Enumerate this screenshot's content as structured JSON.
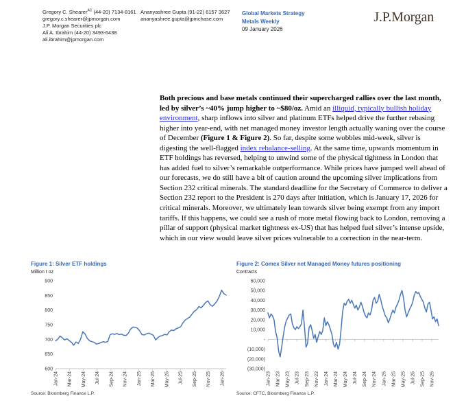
{
  "header": {
    "authors": [
      {
        "name": "Gregory C. Shearer",
        "sup": "AC",
        "phone": "(44-20) 7134-8161",
        "email": "gregory.c.shearer@jpmorgan.com",
        "firm": "J.P. Morgan Securities plc"
      },
      {
        "name": "Ali A. Ibrahim",
        "phone": "(44-20) 3493-6438",
        "email": "ali.ibrahim@jpmorgan.com"
      },
      {
        "name": "Ananyashree Gupta",
        "phone": "(91-22) 6157 3627",
        "email": "ananyashree.gupta@jpmchase.com"
      }
    ],
    "publication": {
      "line1": "Global Markets Strategy",
      "line2": "Metals Weekly",
      "date": "09 January 2026"
    },
    "logo": "J.P.Morgan",
    "accent_blue": "#3767b5",
    "logo_color": "#43362a"
  },
  "body": {
    "runs": [
      {
        "t": "Both precious and base metals continued their supercharged rallies over the last month, led by silver’s ~40% jump higher to ~$80/oz.",
        "s": "b"
      },
      {
        "t": " Amid an ",
        "s": "n"
      },
      {
        "t": "illiquid, typically bullish holiday environment",
        "s": "l",
        "name": "link-holiday-environment"
      },
      {
        "t": ", sharp inflows into silver and platinum ETFs helped drive the further rebasing higher into year-end, with net managed money investor length actually waning over the course of December ",
        "s": "n"
      },
      {
        "t": "(Figure 1 & Figure 2)",
        "s": "b"
      },
      {
        "t": ". So far, despite some wobbles mid-week, silver is digesting the well-flagged ",
        "s": "n"
      },
      {
        "t": "index rebalance-selling",
        "s": "l",
        "name": "link-index-rebalance-selling"
      },
      {
        "t": ". At the same time, upwards momentum in ETF holdings has reversed, helping to unwind some of the physical tightness in London that has added fuel to silver’s remarkable outperformance. While prices have jumped well ahead of our forecasts, we do still have a bit of caution around the upcoming silver implications from Section 232 critical minerals. The standard deadline for the Secretary of Commerce to deliver a Section 232 report to the President is 270 days after initiation, which is January 17, 2026 for critical minerals. Moreover, we ultimately lean towards silver being exempt from any import tariffs. If this happens, we could see a rush of more metal flowing back to London, removing a pillar of support (physical market tightness ex-US) that has helped fuel silver’s intense upside, which in our view would leave silver prices vulnerable to a correction in the near-term.",
        "s": "n"
      }
    ],
    "link_color": "#2626d8"
  },
  "chart_data": [
    {
      "type": "line",
      "title": "Figure 1: Silver ETF holdings",
      "ylabel": "Million t oz",
      "source": "Source: Bloomberg Finance L.P.",
      "ylim": [
        600,
        900
      ],
      "ytick_values": [
        900,
        850,
        800,
        750,
        700,
        650,
        600
      ],
      "ytick_labels": [
        "900",
        "850",
        "800",
        "750",
        "700",
        "650",
        "600"
      ],
      "x_tick_labels": [
        "Jan-24",
        "Mar-24",
        "May-24",
        "Jul-24",
        "Sep-24",
        "Nov-24",
        "Jan-25",
        "Mar-25",
        "May-25",
        "Jul-25",
        "Sep-25",
        "Nov-25",
        "Jan-26"
      ],
      "x_tick_step_months": 2,
      "months_total": 24.6,
      "zero_axis": false,
      "line_color": "#4a76b8",
      "values": [
        695,
        700,
        711,
        705,
        698,
        702,
        696,
        690,
        680,
        691,
        686,
        700,
        726,
        718,
        703,
        695,
        692,
        690,
        684,
        686,
        689,
        692,
        690,
        693,
        716,
        719,
        717,
        720,
        716,
        718,
        714,
        713,
        721,
        735,
        742,
        741,
        738,
        729,
        716,
        715,
        719,
        721,
        718,
        714,
        698,
        706,
        711,
        713,
        717,
        715,
        726,
        732,
        730,
        736,
        739,
        743,
        756,
        766,
        771,
        776,
        786,
        796,
        801,
        812,
        808,
        816,
        826,
        831,
        818,
        813,
        821,
        831,
        846,
        868,
        856,
        851
      ]
    },
    {
      "type": "line",
      "title": "Figure 2: Comex Silver net Managed Money futures positioning",
      "ylabel": "Contracts",
      "source": "Source: CFTC, Bloomberg Finance L.P.",
      "ylim": [
        -30000,
        60000
      ],
      "ytick_values": [
        60000,
        50000,
        40000,
        30000,
        20000,
        10000,
        0,
        -10000,
        -20000,
        -30000
      ],
      "ytick_labels": [
        "60,000",
        "50,000",
        "40,000",
        "30,000",
        "20,000",
        "10,000",
        "-",
        "(10,000)",
        "(20,000)",
        "(30,000)"
      ],
      "x_tick_labels": [
        "Jan-23",
        "Mar-23",
        "May-23",
        "Jul-23",
        "Sep-23",
        "Nov-23",
        "Jan-24",
        "Mar-24",
        "May-24",
        "Jul-24",
        "Sep-24",
        "Nov-24",
        "Jan-25",
        "Mar-25",
        "May-25",
        "Jul-25",
        "Sep-25",
        "Nov-25"
      ],
      "x_tick_step_months": 2,
      "months_total": 35.4,
      "zero_axis": true,
      "line_color": "#4a76b8",
      "values": [
        27000,
        22000,
        26000,
        24000,
        20000,
        8000,
        2000,
        -12000,
        -18000,
        -8000,
        3000,
        13000,
        19000,
        22000,
        25000,
        26000,
        16000,
        12000,
        10000,
        13000,
        11000,
        13000,
        16000,
        30000,
        12000,
        -8000,
        -4000,
        12000,
        15000,
        9000,
        1000,
        5000,
        -3000,
        3000,
        8000,
        5000,
        9000,
        22000,
        14000,
        18000,
        15000,
        10000,
        5000,
        -5000,
        -8000,
        -3000,
        -10000,
        -5000,
        10000,
        28000,
        37000,
        35000,
        39000,
        41000,
        37000,
        40000,
        36000,
        32000,
        35000,
        30000,
        33000,
        38000,
        34000,
        28000,
        24000,
        22000,
        27000,
        25000,
        30000,
        40000,
        43000,
        37000,
        39000,
        46000,
        41000,
        34000,
        29000,
        24000,
        22000,
        17000,
        21000,
        26000,
        30000,
        27000,
        33000,
        36000,
        40000,
        46000,
        50000,
        42000,
        30000,
        23000,
        27000,
        31000,
        34000,
        38000,
        45000,
        49000,
        47000,
        48000,
        44000,
        41000,
        38000,
        32000,
        28000,
        36000,
        38000,
        30000,
        21000,
        23000,
        18000,
        21000,
        14000
      ]
    }
  ]
}
